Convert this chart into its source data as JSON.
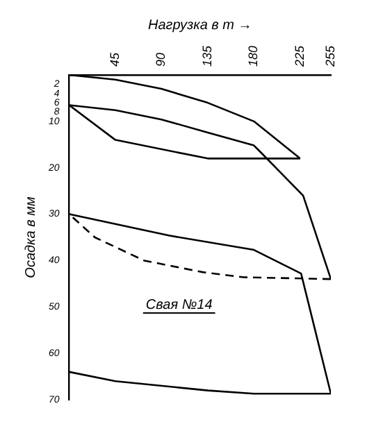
{
  "chart_data": {
    "type": "line",
    "xlabel": "Нагрузка в т →",
    "ylabel": "Осадка в мм",
    "annotations": [
      "Свая №14"
    ],
    "xlim": [
      0,
      255
    ],
    "xticks": [
      45,
      90,
      135,
      180,
      225,
      255
    ],
    "ylim": [
      70,
      0
    ],
    "yticks": [
      2,
      4,
      6,
      8,
      10,
      20,
      30,
      40,
      50,
      60,
      70
    ],
    "grid": false,
    "legend": false,
    "marker": "none",
    "line_style": "solid",
    "series": [
      {
        "color": "#000000",
        "x": [
          0,
          45,
          90,
          135,
          180,
          225
        ],
        "values": [
          0,
          1,
          3,
          6,
          10,
          18
        ]
      },
      {
        "color": "#000000",
        "x": [
          225,
          135,
          45,
          0
        ],
        "values": [
          18,
          18,
          14,
          6.5
        ]
      },
      {
        "color": "#000000",
        "x": [
          0,
          45,
          90,
          135,
          180,
          185,
          228,
          255
        ],
        "values": [
          6.5,
          7.6,
          9.6,
          12.4,
          15.2,
          16.3,
          26,
          44
        ]
      },
      {
        "color": "#000000",
        "line_style": "dashed",
        "x": [
          255,
          170,
          130,
          73,
          25,
          0
        ],
        "values": [
          44,
          43.6,
          42.5,
          40,
          35,
          30
        ]
      },
      {
        "color": "#000000",
        "x": [
          0,
          97,
          180,
          226,
          255
        ],
        "values": [
          30,
          34.6,
          37.7,
          42.8,
          68.7
        ]
      },
      {
        "color": "#000000",
        "x": [
          255,
          180,
          135,
          45,
          0
        ],
        "values": [
          68.7,
          68.7,
          68,
          66,
          64
        ]
      }
    ]
  }
}
